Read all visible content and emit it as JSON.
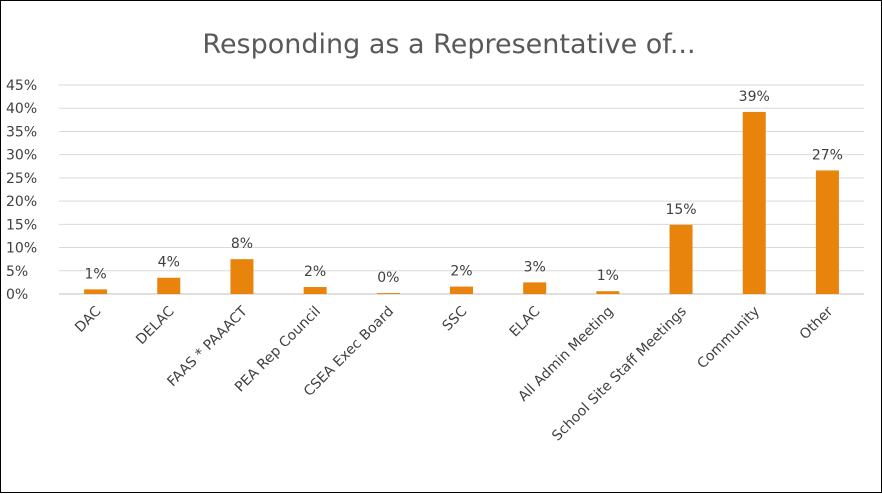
{
  "chart_data": {
    "type": "bar",
    "title": "Responding as a Representative of...",
    "categories": [
      "DAC",
      "DELAC",
      "FAAS * PAAACT",
      "PEA Rep Council",
      "CSEA Exec Board",
      "SSC",
      "ELAC",
      "All Admin Meeting",
      "School Site Staff Meetings",
      "Community",
      "Other"
    ],
    "values": [
      1,
      3.5,
      7.5,
      1.5,
      0.2,
      1.6,
      2.5,
      0.6,
      14.9,
      39.2,
      26.6
    ],
    "data_labels": [
      "1%",
      "4%",
      "8%",
      "2%",
      "0%",
      "2%",
      "3%",
      "1%",
      "15%",
      "39%",
      "27%"
    ],
    "y_ticks": [
      "0%",
      "5%",
      "10%",
      "15%",
      "20%",
      "25%",
      "30%",
      "35%",
      "40%",
      "45%"
    ],
    "ylim": [
      0,
      45
    ],
    "grid": true,
    "legend": "none",
    "bar_color": "#E8830C"
  }
}
